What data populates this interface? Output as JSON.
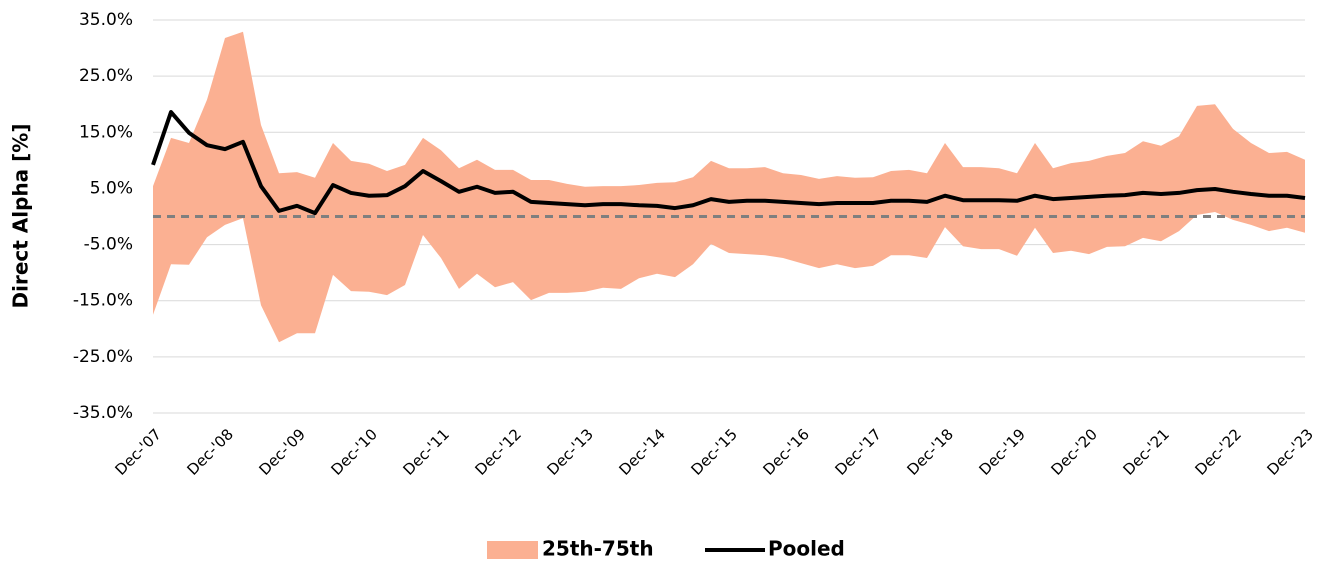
{
  "chart_data": {
    "type": "band-line",
    "y_label": "Direct Alpha [%]",
    "categories": [
      "Dec-'07",
      null,
      null,
      null,
      "Dec-'08",
      null,
      null,
      null,
      "Dec-'09",
      null,
      null,
      null,
      "Dec-'10",
      null,
      null,
      null,
      "Dec-'11",
      null,
      null,
      null,
      "Dec-'12",
      null,
      null,
      null,
      "Dec-'13",
      null,
      null,
      null,
      "Dec-'14",
      null,
      null,
      null,
      "Dec-'15",
      null,
      null,
      null,
      "Dec-'16",
      null,
      null,
      null,
      "Dec-'17",
      null,
      null,
      null,
      "Dec-'18",
      null,
      null,
      null,
      "Dec-'19",
      null,
      null,
      null,
      "Dec-'20",
      null,
      null,
      null,
      "Dec-'21",
      null,
      null,
      null,
      "Dec-'22",
      null,
      null,
      null,
      "Dec-'23"
    ],
    "series": [
      {
        "name": "25th-75th",
        "color": "#fbb092",
        "low": [
          -17.5,
          -8.5,
          -8.6,
          -3.7,
          -1.5,
          -0.3,
          -15.8,
          -22.4,
          -20.8,
          -20.8,
          -10.4,
          -13.3,
          -13.4,
          -14.0,
          -12.2,
          -3.3,
          -7.4,
          -12.9,
          -10.2,
          -12.6,
          -11.7,
          -14.9,
          -13.6,
          -13.6,
          -13.4,
          -12.7,
          -12.9,
          -11.0,
          -10.2,
          -10.8,
          -8.5,
          -4.9,
          -6.5,
          -6.7,
          -6.9,
          -7.4,
          -8.3,
          -9.2,
          -8.5,
          -9.2,
          -8.8,
          -6.9,
          -6.9,
          -7.4,
          -1.9,
          -5.3,
          -5.8,
          -5.8,
          -7.0,
          -2.0,
          -6.5,
          -6.1,
          -6.7,
          -5.4,
          -5.3,
          -3.8,
          -4.4,
          -2.6,
          0.3,
          0.8,
          -0.6,
          -1.5,
          -2.6,
          -2.0,
          -2.9
        ],
        "high": [
          5.4,
          14.0,
          13.1,
          20.8,
          31.8,
          32.9,
          16.3,
          7.7,
          7.9,
          6.9,
          13.1,
          9.9,
          9.4,
          8.1,
          9.2,
          14.0,
          11.8,
          8.6,
          10.1,
          8.3,
          8.3,
          6.5,
          6.5,
          5.8,
          5.3,
          5.4,
          5.4,
          5.6,
          6.0,
          6.1,
          7.0,
          9.9,
          8.6,
          8.6,
          8.8,
          7.7,
          7.4,
          6.7,
          7.2,
          6.9,
          7.0,
          8.1,
          8.3,
          7.7,
          13.1,
          8.8,
          8.8,
          8.6,
          7.7,
          13.1,
          8.6,
          9.5,
          9.9,
          10.8,
          11.3,
          13.4,
          12.6,
          14.3,
          19.7,
          20.0,
          15.6,
          13.1,
          11.3,
          11.5,
          10.1
        ]
      },
      {
        "name": "Pooled",
        "color": "#000000",
        "values": [
          9.2,
          18.6,
          14.9,
          12.7,
          12.0,
          13.3,
          5.4,
          1.0,
          1.9,
          0.6,
          5.6,
          4.2,
          3.7,
          3.8,
          5.4,
          8.1,
          6.3,
          4.4,
          5.3,
          4.2,
          4.4,
          2.6,
          2.4,
          2.2,
          2.0,
          2.2,
          2.2,
          2.0,
          1.9,
          1.5,
          2.0,
          3.1,
          2.6,
          2.8,
          2.8,
          2.6,
          2.4,
          2.2,
          2.4,
          2.4,
          2.4,
          2.8,
          2.8,
          2.6,
          3.7,
          2.9,
          2.9,
          2.9,
          2.8,
          3.7,
          3.1,
          3.3,
          3.5,
          3.7,
          3.8,
          4.2,
          4.0,
          4.2,
          4.7,
          4.9,
          4.4,
          4.0,
          3.7,
          3.7,
          3.3
        ]
      }
    ],
    "reference_line": 0,
    "ylim": [
      -35,
      35
    ],
    "yticks": [
      {
        "value": 35,
        "label": "35.0%"
      },
      {
        "value": 25,
        "label": "25.0%"
      },
      {
        "value": 15,
        "label": "15.0%"
      },
      {
        "value": 5,
        "label": "5.0%"
      },
      {
        "value": -5,
        "label": "-5.0%"
      },
      {
        "value": -15,
        "label": "-15.0%"
      },
      {
        "value": -25,
        "label": "-25.0%"
      },
      {
        "value": -35,
        "label": "-35.0%"
      }
    ],
    "grid": true
  }
}
